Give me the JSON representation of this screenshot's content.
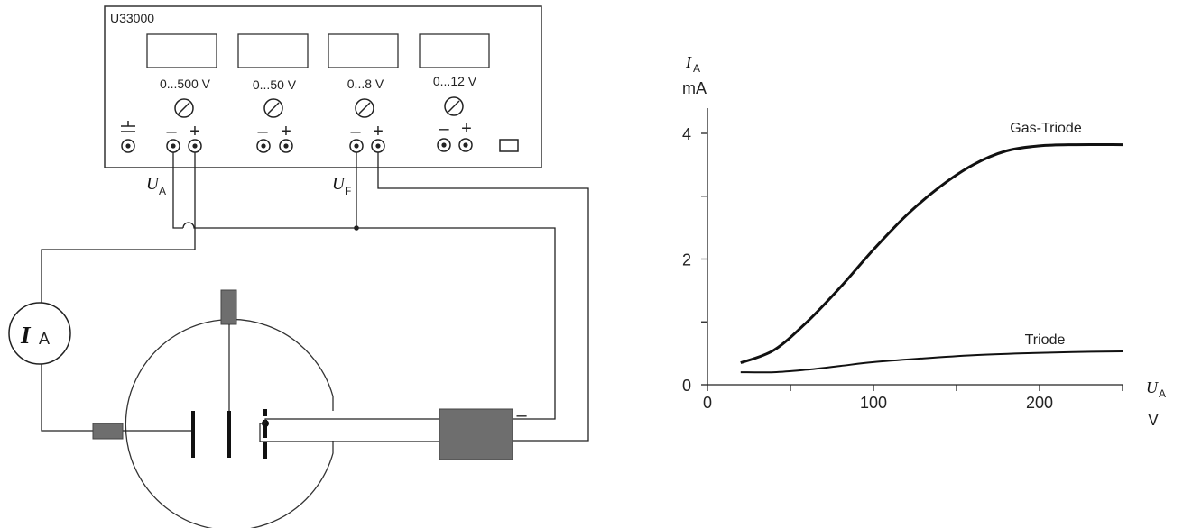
{
  "supply": {
    "model": "U33000",
    "channels": [
      {
        "label": "0...500 V"
      },
      {
        "label": "0...50 V"
      },
      {
        "label": "0...8 V"
      },
      {
        "label": "0...12 V"
      }
    ],
    "minus": "–",
    "plus": "+"
  },
  "circuit": {
    "ua_main": "U",
    "ua_sub": "A",
    "uf_main": "U",
    "uf_sub": "F",
    "meter_main": "I",
    "meter_sub": "A",
    "neg_mark": "–"
  },
  "chart_data": {
    "type": "line",
    "ylabel_main": "I",
    "ylabel_sub": "A",
    "yunit": "mA",
    "xlabel_main": "U",
    "xlabel_sub": "A",
    "xunit": "V",
    "xlim": [
      0,
      250
    ],
    "ylim": [
      0,
      4.6
    ],
    "x_ticks": [
      0,
      50,
      100,
      150,
      200,
      250
    ],
    "x_tick_labels": [
      {
        "value": 0,
        "label": "0"
      },
      {
        "value": 100,
        "label": "100"
      },
      {
        "value": 200,
        "label": "200"
      }
    ],
    "y_ticks": [
      0,
      1,
      2,
      3,
      4
    ],
    "y_tick_labels": [
      {
        "value": 0,
        "label": "0"
      },
      {
        "value": 2,
        "label": "2"
      },
      {
        "value": 4,
        "label": "4"
      }
    ],
    "series": [
      {
        "name": "Gas-Triode",
        "x": [
          20,
          40,
          60,
          80,
          100,
          120,
          140,
          160,
          180,
          200,
          220,
          250
        ],
        "y": [
          0.35,
          0.55,
          1.0,
          1.55,
          2.15,
          2.7,
          3.15,
          3.5,
          3.72,
          3.8,
          3.82,
          3.82
        ]
      },
      {
        "name": "Triode",
        "x": [
          20,
          40,
          60,
          80,
          100,
          130,
          160,
          190,
          220,
          250
        ],
        "y": [
          0.2,
          0.2,
          0.24,
          0.3,
          0.36,
          0.42,
          0.47,
          0.5,
          0.52,
          0.53
        ]
      }
    ]
  }
}
